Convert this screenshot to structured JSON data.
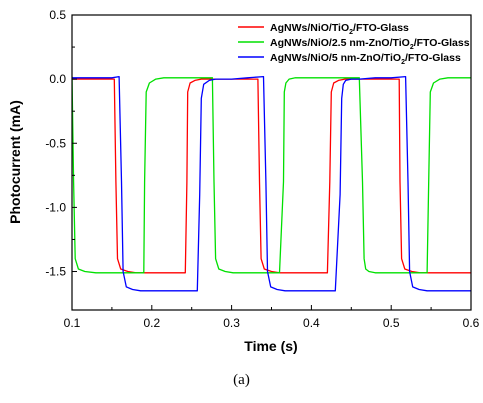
{
  "chart_data": {
    "type": "line",
    "title": "",
    "xlabel": "Time (s)",
    "ylabel": "Photocurrent (mA)",
    "xlim": [
      0.1,
      0.6
    ],
    "ylim": [
      -1.8,
      0.5
    ],
    "xticks": [
      0.1,
      0.2,
      0.3,
      0.4,
      0.5,
      0.6
    ],
    "xtick_labels": [
      "0.1",
      "0.2",
      "0.3",
      "0.4",
      "0.5",
      "0.6"
    ],
    "yticks": [
      0.5,
      0.0,
      -0.5,
      -1.0,
      -1.5
    ],
    "ytick_labels": [
      "0.5",
      "0.0",
      "-0.5",
      "-1.0",
      "-1.5"
    ],
    "grid": false,
    "legend_position": "top-right",
    "series": [
      {
        "name": "AgNWs/NiO/TiO₂/FTO-Glass",
        "color": "#ff0000",
        "x": [
          0.1,
          0.153,
          0.155,
          0.157,
          0.161,
          0.17,
          0.18,
          0.2,
          0.222,
          0.242,
          0.244,
          0.245,
          0.248,
          0.254,
          0.262,
          0.28,
          0.3,
          0.32,
          0.333,
          0.335,
          0.337,
          0.341,
          0.35,
          0.36,
          0.38,
          0.4,
          0.42,
          0.423,
          0.425,
          0.428,
          0.434,
          0.442,
          0.46,
          0.48,
          0.5,
          0.51,
          0.511,
          0.513,
          0.517,
          0.526,
          0.536,
          0.56,
          0.58,
          0.598,
          0.6
        ],
        "y": [
          0.0,
          0.0,
          -0.8,
          -1.4,
          -1.48,
          -1.5,
          -1.51,
          -1.51,
          -1.51,
          -1.51,
          -0.8,
          -0.1,
          -0.03,
          -0.01,
          0.0,
          0.0,
          0.0,
          0.0,
          0.0,
          -0.8,
          -1.4,
          -1.48,
          -1.5,
          -1.51,
          -1.51,
          -1.51,
          -1.51,
          -0.8,
          -0.1,
          -0.03,
          -0.01,
          0.0,
          0.0,
          0.0,
          0.0,
          0.0,
          -0.8,
          -1.4,
          -1.48,
          -1.5,
          -1.51,
          -1.51,
          -1.51,
          -1.51,
          -1.51
        ]
      },
      {
        "name": "AgNWs/NiO/2.5 nm-ZnO/TiO₂/FTO-Glass",
        "color": "#00e000",
        "x": [
          0.1,
          0.102,
          0.104,
          0.108,
          0.116,
          0.13,
          0.15,
          0.17,
          0.19,
          0.191,
          0.193,
          0.197,
          0.205,
          0.215,
          0.24,
          0.26,
          0.276,
          0.278,
          0.28,
          0.284,
          0.292,
          0.302,
          0.32,
          0.34,
          0.36,
          0.365,
          0.366,
          0.368,
          0.372,
          0.38,
          0.39,
          0.42,
          0.44,
          0.46,
          0.464,
          0.466,
          0.468,
          0.472,
          0.48,
          0.49,
          0.51,
          0.53,
          0.545,
          0.547,
          0.549,
          0.553,
          0.561,
          0.571,
          0.6
        ],
        "y": [
          0.02,
          -0.8,
          -1.4,
          -1.48,
          -1.5,
          -1.51,
          -1.51,
          -1.51,
          -1.51,
          -0.8,
          -0.1,
          -0.03,
          0.0,
          0.01,
          0.01,
          0.01,
          0.01,
          -0.8,
          -1.4,
          -1.48,
          -1.5,
          -1.51,
          -1.51,
          -1.51,
          -1.51,
          -0.8,
          -0.1,
          -0.03,
          0.0,
          0.01,
          0.01,
          0.01,
          0.01,
          0.01,
          -0.8,
          -1.4,
          -1.48,
          -1.5,
          -1.51,
          -1.51,
          -1.51,
          -1.51,
          -1.51,
          -0.8,
          -0.1,
          -0.03,
          0.0,
          0.01,
          0.01
        ]
      },
      {
        "name": "AgNWs/NiO/5 nm-ZnO/TiO₂/FTO-Glass",
        "color": "#0000ff",
        "x": [
          0.1,
          0.14,
          0.15,
          0.159,
          0.162,
          0.164,
          0.168,
          0.176,
          0.186,
          0.21,
          0.23,
          0.25,
          0.257,
          0.26,
          0.262,
          0.265,
          0.272,
          0.28,
          0.3,
          0.32,
          0.34,
          0.343,
          0.345,
          0.349,
          0.357,
          0.367,
          0.39,
          0.41,
          0.43,
          0.436,
          0.438,
          0.44,
          0.443,
          0.45,
          0.46,
          0.48,
          0.5,
          0.518,
          0.521,
          0.523,
          0.527,
          0.535,
          0.545,
          0.57,
          0.6
        ],
        "y": [
          0.01,
          0.01,
          0.01,
          0.02,
          -0.8,
          -1.5,
          -1.62,
          -1.64,
          -1.65,
          -1.65,
          -1.65,
          -1.65,
          -1.65,
          -0.9,
          -0.15,
          -0.04,
          -0.01,
          0.0,
          0.0,
          0.01,
          0.02,
          -0.8,
          -1.5,
          -1.62,
          -1.64,
          -1.65,
          -1.65,
          -1.65,
          -1.65,
          -0.9,
          -0.15,
          -0.04,
          -0.01,
          0.0,
          0.0,
          0.01,
          0.01,
          0.02,
          -0.8,
          -1.5,
          -1.62,
          -1.64,
          -1.65,
          -1.65,
          -1.65
        ]
      }
    ]
  },
  "caption": "(a)"
}
